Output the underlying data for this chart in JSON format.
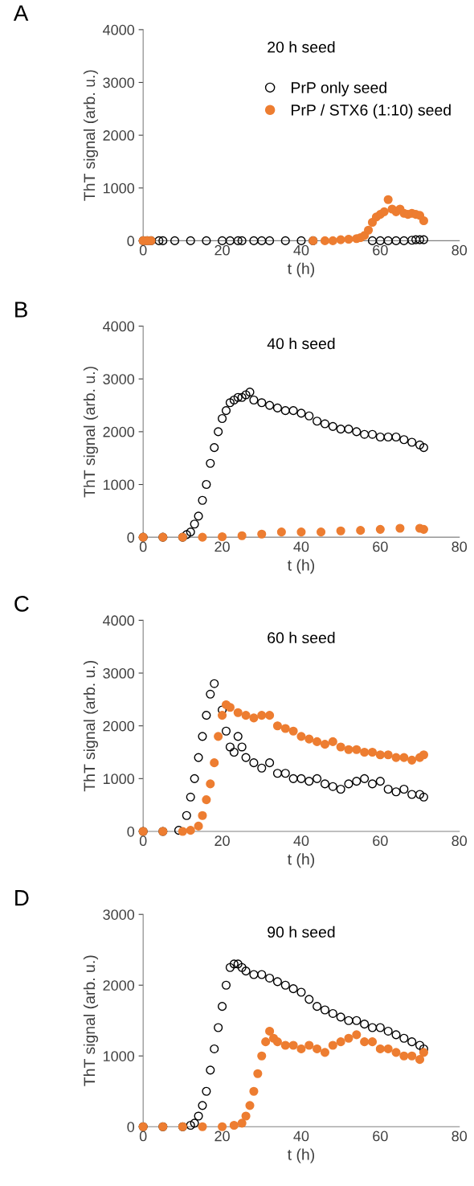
{
  "chart_data": [
    {
      "type": "scatter",
      "title": "20 h seed",
      "xlabel": "t (h)",
      "ylabel": "ThT signal (arb. u.)",
      "annotations": [
        "A"
      ],
      "xlim": [
        0,
        80
      ],
      "xticks": [
        0,
        20,
        40,
        60,
        80
      ],
      "ylim": [
        0,
        4000
      ],
      "yticks": [
        0,
        1000,
        2000,
        3000,
        4000
      ],
      "marker": "circle",
      "grid": false,
      "legend": "top right",
      "series": [
        {
          "name": "PrP only seed",
          "color": "#000000",
          "x": [
            0,
            1,
            2,
            4,
            5,
            8,
            12,
            16,
            20,
            22,
            24,
            25,
            28,
            30,
            32,
            36,
            40,
            43,
            58,
            60,
            62,
            64,
            66,
            68,
            69,
            70,
            71
          ],
          "values": [
            0,
            0,
            0,
            0,
            0,
            0,
            0,
            0,
            0,
            0,
            0,
            0,
            0,
            0,
            0,
            0,
            0,
            0,
            0,
            0,
            0,
            0,
            0,
            10,
            20,
            20,
            20
          ]
        },
        {
          "name": "PrP / STX6 (1:10) seed",
          "color": "#ed7d31",
          "x": [
            0,
            1,
            2,
            43,
            46,
            48,
            50,
            52,
            54,
            55,
            56,
            57,
            58,
            59,
            60,
            61,
            62,
            63,
            64,
            65,
            66,
            67,
            68,
            69,
            70,
            71
          ],
          "values": [
            0,
            0,
            0,
            0,
            0,
            0,
            20,
            30,
            40,
            60,
            100,
            200,
            350,
            450,
            500,
            550,
            780,
            600,
            550,
            600,
            520,
            500,
            520,
            500,
            480,
            380
          ]
        }
      ]
    },
    {
      "type": "scatter",
      "title": "40 h seed",
      "xlabel": "t (h)",
      "ylabel": "ThT signal (arb. u.)",
      "annotations": [
        "B"
      ],
      "xlim": [
        0,
        80
      ],
      "xticks": [
        0,
        20,
        40,
        60,
        80
      ],
      "ylim": [
        0,
        4000
      ],
      "yticks": [
        0,
        1000,
        2000,
        3000,
        4000
      ],
      "marker": "circle",
      "grid": false,
      "series": [
        {
          "color": "#000000",
          "x": [
            0,
            5,
            10,
            11,
            12,
            13,
            14,
            15,
            16,
            17,
            18,
            19,
            20,
            21,
            22,
            23,
            24,
            25,
            26,
            27,
            28,
            30,
            32,
            34,
            36,
            38,
            40,
            42,
            44,
            46,
            48,
            50,
            52,
            54,
            56,
            58,
            60,
            62,
            64,
            66,
            68,
            70,
            71
          ],
          "values": [
            0,
            0,
            0,
            50,
            100,
            250,
            400,
            700,
            1000,
            1400,
            1700,
            2000,
            2250,
            2400,
            2550,
            2600,
            2650,
            2650,
            2700,
            2750,
            2600,
            2550,
            2500,
            2450,
            2400,
            2400,
            2350,
            2300,
            2200,
            2150,
            2100,
            2050,
            2050,
            2000,
            1950,
            1950,
            1900,
            1900,
            1900,
            1850,
            1800,
            1750,
            1700
          ]
        },
        {
          "color": "#ed7d31",
          "x": [
            0,
            5,
            10,
            15,
            20,
            25,
            30,
            35,
            40,
            45,
            50,
            55,
            60,
            65,
            70,
            71
          ],
          "values": [
            0,
            0,
            0,
            0,
            10,
            30,
            60,
            100,
            100,
            100,
            120,
            130,
            150,
            170,
            170,
            150
          ]
        }
      ]
    },
    {
      "type": "scatter",
      "title": "60 h seed",
      "xlabel": "t (h)",
      "ylabel": "ThT signal (arb. u.)",
      "annotations": [
        "C"
      ],
      "xlim": [
        0,
        80
      ],
      "xticks": [
        0,
        20,
        40,
        60,
        80
      ],
      "ylim": [
        0,
        4000
      ],
      "yticks": [
        0,
        1000,
        2000,
        3000,
        4000
      ],
      "marker": "circle",
      "grid": false,
      "series": [
        {
          "color": "#000000",
          "x": [
            0,
            5,
            9,
            11,
            12,
            13,
            14,
            15,
            16,
            17,
            18,
            20,
            21,
            22,
            23,
            24,
            25,
            26,
            28,
            30,
            32,
            34,
            36,
            38,
            40,
            42,
            44,
            46,
            48,
            50,
            52,
            54,
            56,
            58,
            60,
            62,
            64,
            66,
            68,
            70,
            71
          ],
          "values": [
            0,
            0,
            20,
            300,
            650,
            1000,
            1400,
            1800,
            2200,
            2600,
            2800,
            2300,
            1900,
            1600,
            1500,
            1800,
            1600,
            1400,
            1300,
            1200,
            1300,
            1100,
            1100,
            1000,
            1000,
            950,
            1000,
            900,
            850,
            800,
            900,
            950,
            1000,
            900,
            950,
            800,
            750,
            800,
            700,
            700,
            650
          ]
        },
        {
          "color": "#ed7d31",
          "x": [
            0,
            5,
            10,
            12,
            14,
            15,
            16,
            17,
            18,
            19,
            20,
            21,
            22,
            24,
            26,
            28,
            30,
            32,
            34,
            36,
            38,
            40,
            42,
            44,
            46,
            48,
            50,
            52,
            54,
            56,
            58,
            60,
            62,
            64,
            66,
            68,
            70,
            71
          ],
          "values": [
            0,
            0,
            0,
            20,
            100,
            300,
            600,
            900,
            1300,
            1800,
            2200,
            2400,
            2350,
            2250,
            2200,
            2150,
            2200,
            2200,
            2000,
            1950,
            1900,
            1800,
            1750,
            1700,
            1650,
            1700,
            1600,
            1550,
            1550,
            1500,
            1500,
            1450,
            1450,
            1400,
            1400,
            1350,
            1400,
            1450
          ]
        }
      ]
    },
    {
      "type": "scatter",
      "title": "90 h seed",
      "xlabel": "t (h)",
      "ylabel": "ThT signal (arb. u.)",
      "annotations": [
        "D"
      ],
      "xlim": [
        0,
        80
      ],
      "xticks": [
        0,
        20,
        40,
        60,
        80
      ],
      "ylim": [
        0,
        3000
      ],
      "yticks": [
        0,
        1000,
        2000,
        3000
      ],
      "marker": "circle",
      "grid": false,
      "series": [
        {
          "color": "#000000",
          "x": [
            0,
            5,
            10,
            12,
            13,
            14,
            15,
            16,
            17,
            18,
            19,
            20,
            21,
            22,
            23,
            24,
            25,
            26,
            28,
            30,
            32,
            34,
            36,
            38,
            40,
            42,
            44,
            46,
            48,
            50,
            52,
            54,
            56,
            58,
            60,
            62,
            64,
            66,
            68,
            70,
            71
          ],
          "values": [
            0,
            0,
            0,
            20,
            50,
            150,
            300,
            500,
            800,
            1100,
            1400,
            1700,
            2000,
            2250,
            2300,
            2300,
            2250,
            2200,
            2150,
            2150,
            2100,
            2050,
            2000,
            1950,
            1900,
            1800,
            1700,
            1650,
            1600,
            1550,
            1500,
            1500,
            1450,
            1400,
            1400,
            1350,
            1300,
            1250,
            1200,
            1150,
            1100
          ]
        },
        {
          "color": "#ed7d31",
          "x": [
            0,
            5,
            10,
            15,
            20,
            23,
            25,
            26,
            27,
            28,
            29,
            30,
            31,
            32,
            33,
            34,
            36,
            38,
            40,
            42,
            44,
            46,
            48,
            50,
            52,
            54,
            56,
            58,
            60,
            62,
            64,
            66,
            68,
            70,
            71
          ],
          "values": [
            0,
            0,
            0,
            0,
            0,
            20,
            50,
            150,
            300,
            500,
            750,
            1000,
            1200,
            1350,
            1250,
            1200,
            1150,
            1150,
            1100,
            1150,
            1100,
            1050,
            1150,
            1200,
            1250,
            1300,
            1200,
            1200,
            1100,
            1100,
            1050,
            1000,
            1000,
            950,
            1050
          ]
        }
      ]
    }
  ]
}
